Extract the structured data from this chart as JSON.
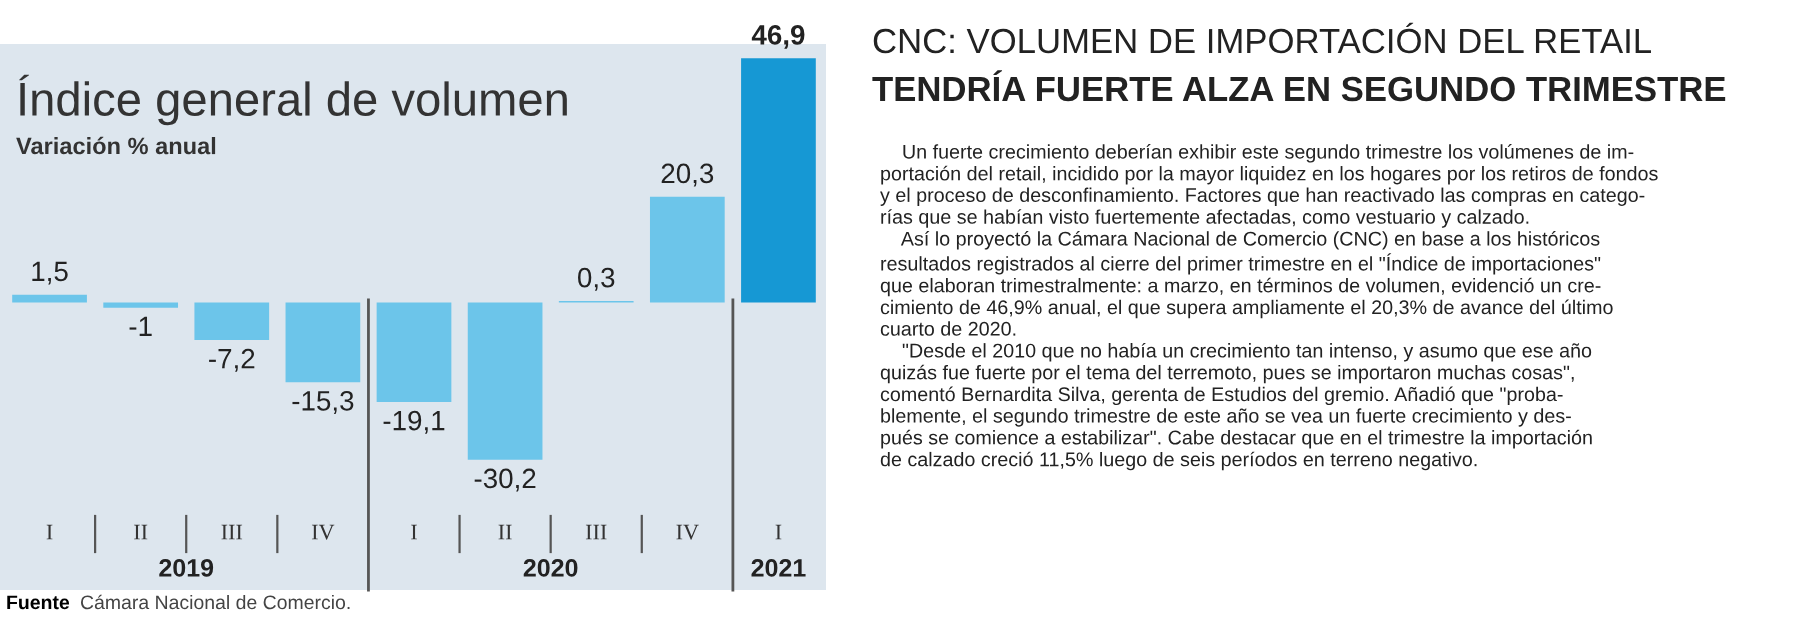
{
  "chart_data": {
    "type": "bar",
    "title": "Índice general de volumen",
    "subtitle": "Variación % anual",
    "categories": [
      "I",
      "II",
      "III",
      "IV",
      "I",
      "II",
      "III",
      "IV",
      "I"
    ],
    "values": [
      1.5,
      -1,
      -7.2,
      -15.3,
      -19.1,
      -30.2,
      0.3,
      20.3,
      46.9
    ],
    "colors": [
      "#6cc5ea",
      "#6cc5ea",
      "#6cc5ea",
      "#6cc5ea",
      "#6cc5ea",
      "#6cc5ea",
      "#6cc5ea",
      "#6cc5ea",
      "#1698d4"
    ],
    "value_labels": [
      "1,5",
      "-1",
      "-7,2",
      "-15,3",
      "-19,1",
      "-30,2",
      "0,3",
      "20,3",
      "46,9"
    ],
    "annotations": [
      "2019",
      "2020",
      "2021",
      "Fuente",
      "Cámara Nacional de Comercio.",
      "CNC: VOLUMEN DE IMPORTACIÓN DEL RETAIL",
      "TENDRÍA FUERTE ALZA EN SEGUNDO TRIMESTRE",
      "Un fuerte crecimiento deberían exhibir este segundo trimestre los volúmenes de im-\nportación del retail, incidido por la mayor liquidez en los hogares por los retiros de fondos\ny el proceso de desconfinamiento. Factores que han reactivado las compras en catego-\nrías que se habían visto fuertemente afectadas, como vestuario y calzado.",
      "Así lo proyectó la Cámara Nacional de Comercio (CNC) en base a los históricos\nresultados registrados al cierre del primer trimestre en el \"Índice de importaciones\"\nque elaboran trimestralmente: a marzo, en términos de volumen, evidenció un cre-\ncimiento de 46,9% anual, el que supera ampliamente el 20,3% de avance del último\ncuarto de 2020.",
      "\"Desde el 2010 que no había un crecimiento tan intenso, y asumo que ese año\nquizás fue fuerte por el tema del terremoto, pues se importaron muchas cosas\",\ncomentó Bernardita Silva, gerenta de Estudios del gremio. Añadió que \"proba-\nblemente, el segundo trimestre de este año se vea un fuerte crecimiento y des-\npués se comience a estabilizar\". Cabe destacar que en el trimestre la importación\nde calzado creció 11,5% luego de seis períodos en terreno negativo."
    ]
  }
}
